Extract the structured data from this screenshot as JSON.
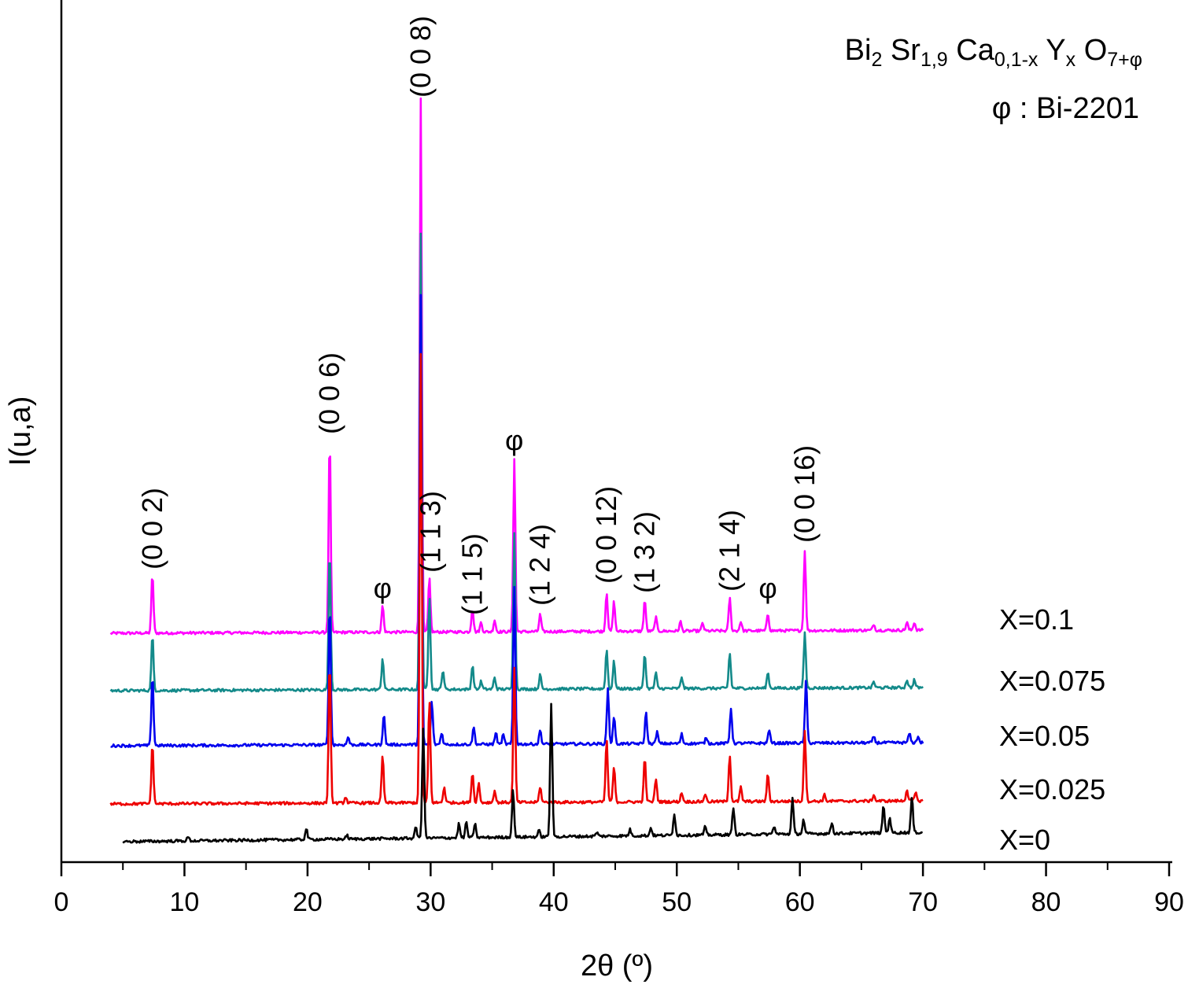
{
  "chart_data": {
    "type": "line",
    "xlabel": "2θ (º)",
    "ylabel": "I(u,a)",
    "xlim": [
      0,
      90
    ],
    "x_ticks": [
      "0",
      "10",
      "20",
      "30",
      "40",
      "50",
      "60",
      "70",
      "80",
      "90"
    ],
    "grid": false,
    "legend_position": "right (inline labels at end of each trace)",
    "formula": {
      "parts": [
        {
          "t": "Bi",
          "k": "n"
        },
        {
          "t": "2",
          "k": "sub"
        },
        {
          "t": " Sr",
          "k": "n"
        },
        {
          "t": "1,9",
          "k": "sub"
        },
        {
          "t": " Ca",
          "k": "n"
        },
        {
          "t": "0,1-x",
          "k": "sub"
        },
        {
          "t": " Y",
          "k": "n"
        },
        {
          "t": "x",
          "k": "sub"
        },
        {
          "t": " O",
          "k": "n"
        },
        {
          "t": "7+φ",
          "k": "sub"
        }
      ]
    },
    "note": "φ : Bi-2201",
    "series": [
      {
        "name": "X=0.1",
        "color": "#ff00ff",
        "offset": 805,
        "amp": 1.0,
        "peaks": [
          [
            7.4,
            75
          ],
          [
            21.8,
            248
          ],
          [
            26.1,
            34
          ],
          [
            29.2,
            680
          ],
          [
            29.9,
            68
          ],
          [
            33.4,
            30
          ],
          [
            34.1,
            12
          ],
          [
            35.2,
            15
          ],
          [
            36.8,
            220
          ],
          [
            38.9,
            22
          ],
          [
            44.3,
            50
          ],
          [
            44.9,
            38
          ],
          [
            47.4,
            40
          ],
          [
            48.3,
            18
          ],
          [
            50.3,
            12
          ],
          [
            52.1,
            10
          ],
          [
            54.3,
            42
          ],
          [
            55.2,
            12
          ],
          [
            57.4,
            22
          ],
          [
            60.4,
            102
          ],
          [
            66,
            8
          ],
          [
            68.7,
            10
          ],
          [
            69.3,
            10
          ]
        ]
      },
      {
        "name": "X=0.075",
        "color": "#138a8a",
        "offset": 878,
        "amp": 1.0,
        "peaks": [
          [
            7.4,
            70
          ],
          [
            21.8,
            180
          ],
          [
            26.1,
            40
          ],
          [
            29.2,
            580
          ],
          [
            29.9,
            120
          ],
          [
            31,
            25
          ],
          [
            33.4,
            30
          ],
          [
            34.1,
            10
          ],
          [
            35.2,
            15
          ],
          [
            36.8,
            200
          ],
          [
            38.9,
            18
          ],
          [
            44.3,
            50
          ],
          [
            44.9,
            35
          ],
          [
            47.4,
            45
          ],
          [
            48.3,
            20
          ],
          [
            50.4,
            15
          ],
          [
            54.3,
            45
          ],
          [
            57.4,
            20
          ],
          [
            60.4,
            70
          ],
          [
            66,
            8
          ],
          [
            68.7,
            10
          ],
          [
            69.3,
            10
          ]
        ]
      },
      {
        "name": "X=0.05",
        "color": "#0000ee",
        "offset": 948,
        "amp": 1.0,
        "peaks": [
          [
            7.4,
            90
          ],
          [
            21.8,
            180
          ],
          [
            23.3,
            10
          ],
          [
            26.2,
            38
          ],
          [
            29.2,
            570
          ],
          [
            30.1,
            55
          ],
          [
            30.9,
            15
          ],
          [
            33.5,
            22
          ],
          [
            35.3,
            15
          ],
          [
            35.9,
            12
          ],
          [
            36.8,
            200
          ],
          [
            38.9,
            18
          ],
          [
            44.4,
            70
          ],
          [
            44.9,
            35
          ],
          [
            47.5,
            40
          ],
          [
            48.4,
            15
          ],
          [
            50.4,
            12
          ],
          [
            52.4,
            8
          ],
          [
            54.4,
            45
          ],
          [
            57.5,
            18
          ],
          [
            60.5,
            80
          ],
          [
            66,
            8
          ],
          [
            68.9,
            12
          ],
          [
            69.6,
            8
          ]
        ]
      },
      {
        "name": "X=0.025",
        "color": "#ee0000",
        "offset": 1022,
        "amp": 1.0,
        "peaks": [
          [
            7.4,
            75
          ],
          [
            21.8,
            180
          ],
          [
            23.1,
            8
          ],
          [
            26.1,
            60
          ],
          [
            29.2,
            570
          ],
          [
            29.9,
            130
          ],
          [
            31.1,
            20
          ],
          [
            33.4,
            38
          ],
          [
            33.9,
            25
          ],
          [
            35.2,
            15
          ],
          [
            36.8,
            170
          ],
          [
            38.9,
            20
          ],
          [
            44.3,
            80
          ],
          [
            44.9,
            45
          ],
          [
            47.4,
            55
          ],
          [
            48.3,
            30
          ],
          [
            50.4,
            12
          ],
          [
            52.3,
            10
          ],
          [
            54.3,
            60
          ],
          [
            55.2,
            18
          ],
          [
            57.4,
            35
          ],
          [
            60.4,
            90
          ],
          [
            62,
            8
          ],
          [
            66,
            8
          ],
          [
            68.7,
            14
          ],
          [
            69.4,
            10
          ]
        ]
      },
      {
        "name": "X=0",
        "color": "#000000",
        "offset": 1070,
        "amp": 1.0,
        "peaks": [
          [
            10.3,
            5
          ],
          [
            19.9,
            14
          ],
          [
            23.2,
            5
          ],
          [
            28.8,
            15
          ],
          [
            29.4,
            140
          ],
          [
            32.3,
            18
          ],
          [
            32.9,
            20
          ],
          [
            33.6,
            18
          ],
          [
            36.7,
            60
          ],
          [
            38.8,
            8
          ],
          [
            39.8,
            170
          ],
          [
            43.5,
            5
          ],
          [
            46.2,
            8
          ],
          [
            47.9,
            10
          ],
          [
            49.8,
            28
          ],
          [
            52.3,
            10
          ],
          [
            54.6,
            35
          ],
          [
            57.9,
            10
          ],
          [
            59.4,
            45
          ],
          [
            60.3,
            18
          ],
          [
            62.6,
            14
          ],
          [
            66.8,
            35
          ],
          [
            67.3,
            20
          ],
          [
            69.1,
            45
          ]
        ]
      }
    ],
    "annotations": [
      {
        "text": "(0 0 2)",
        "x": 7.4
      },
      {
        "text": "(0 0 6)",
        "x": 21.8
      },
      {
        "text": "(0 0 8)",
        "x": 29.2
      },
      {
        "text": "(1 1 3)",
        "x": 30.0
      },
      {
        "text": "(1 1 5)",
        "x": 33.4
      },
      {
        "text": "(1 2 4)",
        "x": 38.9
      },
      {
        "text": "(0 0 12)",
        "x": 44.3
      },
      {
        "text": "(1 3 2)",
        "x": 47.4
      },
      {
        "text": "(2 1 4)",
        "x": 54.3
      },
      {
        "text": "(0 0 16)",
        "x": 60.4
      }
    ],
    "phi_markers": [
      {
        "text": "φ",
        "x": 26.1
      },
      {
        "text": "φ",
        "x": 36.8
      },
      {
        "text": "φ",
        "x": 57.4
      }
    ]
  }
}
